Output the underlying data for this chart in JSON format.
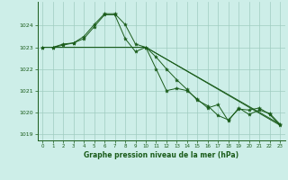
{
  "xlabel": "Graphe pression niveau de la mer (hPa)",
  "xlim": [
    -0.5,
    23.5
  ],
  "ylim": [
    1018.7,
    1025.1
  ],
  "yticks": [
    1019,
    1020,
    1021,
    1022,
    1023,
    1024
  ],
  "xticks": [
    0,
    1,
    2,
    3,
    4,
    5,
    6,
    7,
    8,
    9,
    10,
    11,
    12,
    13,
    14,
    15,
    16,
    17,
    18,
    19,
    20,
    21,
    22,
    23
  ],
  "background_color": "#cdeee8",
  "plot_bg_color": "#cdeee8",
  "line_color": "#1a5c1a",
  "grid_color": "#a0ccc0",
  "series_with_markers": [
    {
      "x": [
        0,
        1,
        2,
        3,
        4,
        5,
        6,
        7,
        8,
        9,
        10,
        11,
        12,
        13,
        14,
        15,
        16,
        17,
        18,
        19,
        20,
        21,
        22,
        23
      ],
      "y": [
        1023.0,
        1023.0,
        1023.15,
        1023.2,
        1023.5,
        1024.05,
        1024.55,
        1024.55,
        1024.05,
        1023.15,
        1023.0,
        1022.55,
        1022.0,
        1021.5,
        1021.05,
        1020.55,
        1020.3,
        1019.85,
        1019.65,
        1020.15,
        1020.1,
        1020.2,
        1019.9,
        1019.4
      ]
    },
    {
      "x": [
        0,
        1,
        2,
        3,
        4,
        5,
        6,
        7,
        8,
        9,
        10,
        11,
        12,
        13,
        14,
        15,
        16,
        17,
        18,
        19,
        20,
        21,
        22,
        23
      ],
      "y": [
        1023.0,
        1023.0,
        1023.1,
        1023.2,
        1023.4,
        1023.95,
        1024.5,
        1024.5,
        1023.4,
        1022.8,
        1023.0,
        1022.0,
        1021.0,
        1021.1,
        1021.0,
        1020.6,
        1020.2,
        1020.35,
        1019.6,
        1020.2,
        1019.9,
        1020.1,
        1019.95,
        1019.45
      ]
    }
  ],
  "series_plain": [
    {
      "x": [
        0,
        10,
        23
      ],
      "y": [
        1023.0,
        1023.0,
        1019.4
      ]
    },
    {
      "x": [
        0,
        10,
        23
      ],
      "y": [
        1023.0,
        1023.0,
        1019.45
      ]
    }
  ]
}
